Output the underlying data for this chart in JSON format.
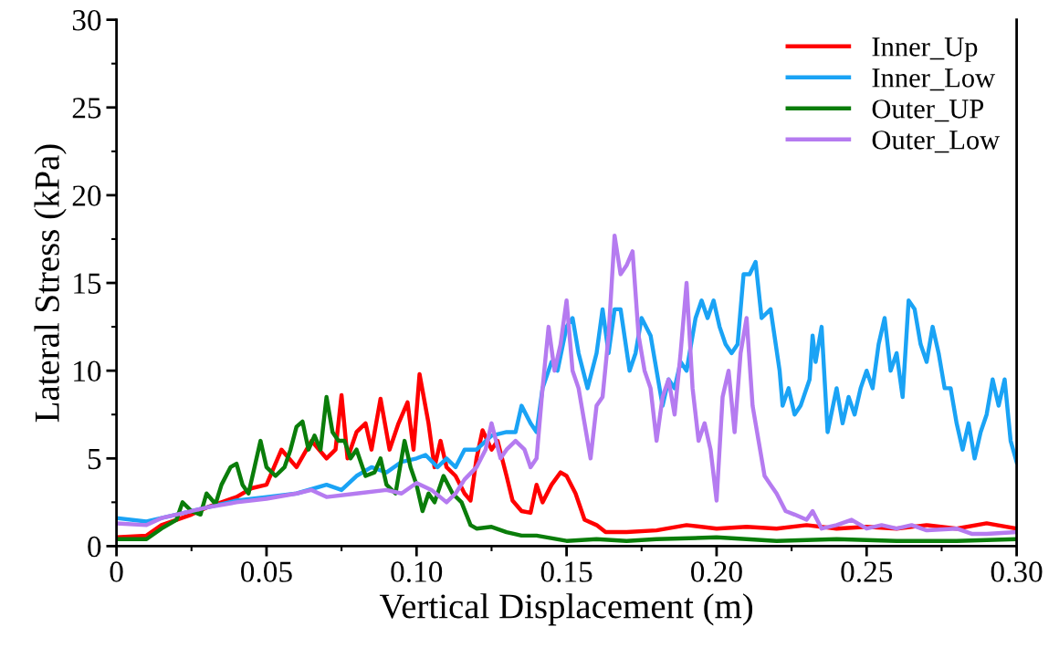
{
  "chart_data": {
    "type": "line",
    "xlabel": "Vertical Displacement (m)",
    "ylabel": "Lateral Stress (kPa)",
    "xlim": [
      0,
      0.3
    ],
    "ylim": [
      0,
      30
    ],
    "xticks": [
      0,
      {
        "value": 0.025,
        "label": null
      },
      {
        "value": 0.05,
        "label": "0.05"
      },
      {
        "value": 0.075,
        "label": null
      },
      {
        "value": 0.1,
        "label": "0.10"
      },
      {
        "value": 0.125,
        "label": null
      },
      {
        "value": 0.15,
        "label": "0.15"
      },
      {
        "value": 0.175,
        "label": null
      },
      {
        "value": 0.2,
        "label": "0.20"
      },
      {
        "value": 0.225,
        "label": null
      },
      {
        "value": 0.25,
        "label": "0.25"
      },
      {
        "value": 0.275,
        "label": null
      },
      {
        "value": 0.3,
        "label": "0.30"
      }
    ],
    "yticks": [
      0,
      {
        "value": 2.5,
        "label": null
      },
      5,
      {
        "value": 7.5,
        "label": null
      },
      10,
      {
        "value": 12.5,
        "label": null
      },
      15,
      {
        "value": 17.5,
        "label": null
      },
      20,
      {
        "value": 22.5,
        "label": null
      },
      25,
      {
        "value": 27.5,
        "label": null
      },
      30
    ],
    "grid": false,
    "legend": "top right",
    "marker": "none",
    "line_style": "solid",
    "series": [
      {
        "name": "Inner_Up",
        "color": "#ff0000",
        "x": [
          0,
          0.01,
          0.015,
          0.02,
          0.025,
          0.03,
          0.035,
          0.04,
          0.045,
          0.05,
          0.055,
          0.06,
          0.065,
          0.07,
          0.073,
          0.075,
          0.077,
          0.08,
          0.083,
          0.085,
          0.088,
          0.091,
          0.094,
          0.097,
          0.099,
          0.101,
          0.104,
          0.106,
          0.108,
          0.11,
          0.113,
          0.116,
          0.118,
          0.12,
          0.122,
          0.125,
          0.127,
          0.13,
          0.132,
          0.135,
          0.138,
          0.14,
          0.142,
          0.145,
          0.148,
          0.15,
          0.153,
          0.156,
          0.16,
          0.163,
          0.17,
          0.18,
          0.19,
          0.2,
          0.21,
          0.22,
          0.23,
          0.24,
          0.25,
          0.26,
          0.27,
          0.28,
          0.29,
          0.3
        ],
        "values": [
          0.5,
          0.6,
          1.2,
          1.5,
          1.8,
          2.2,
          2.5,
          2.8,
          3.3,
          3.5,
          5.5,
          4.5,
          6.0,
          5.0,
          5.5,
          8.6,
          5.0,
          6.5,
          7.0,
          5.5,
          8.4,
          5.5,
          7.0,
          8.2,
          5.5,
          9.8,
          7.0,
          4.5,
          6.0,
          4.5,
          4.0,
          3.0,
          2.6,
          5.0,
          6.6,
          5.5,
          6.0,
          4.0,
          2.6,
          2.0,
          1.9,
          3.5,
          2.5,
          3.5,
          4.2,
          4.0,
          3.0,
          1.5,
          1.2,
          0.8,
          0.8,
          0.9,
          1.2,
          1.0,
          1.1,
          1.0,
          1.2,
          1.0,
          1.1,
          1.0,
          1.2,
          1.0,
          1.3,
          1.0
        ]
      },
      {
        "name": "Inner_Low",
        "color": "#1aa3f5",
        "x": [
          0,
          0.01,
          0.015,
          0.02,
          0.03,
          0.04,
          0.05,
          0.06,
          0.07,
          0.075,
          0.08,
          0.085,
          0.09,
          0.095,
          0.1,
          0.103,
          0.107,
          0.11,
          0.113,
          0.116,
          0.12,
          0.125,
          0.13,
          0.133,
          0.135,
          0.138,
          0.14,
          0.142,
          0.145,
          0.147,
          0.15,
          0.152,
          0.154,
          0.157,
          0.16,
          0.162,
          0.164,
          0.166,
          0.168,
          0.171,
          0.173,
          0.175,
          0.178,
          0.18,
          0.182,
          0.184,
          0.186,
          0.188,
          0.19,
          0.193,
          0.195,
          0.197,
          0.199,
          0.201,
          0.203,
          0.205,
          0.207,
          0.209,
          0.211,
          0.213,
          0.215,
          0.218,
          0.221,
          0.222,
          0.224,
          0.226,
          0.228,
          0.231,
          0.232,
          0.233,
          0.235,
          0.237,
          0.24,
          0.242,
          0.244,
          0.246,
          0.248,
          0.25,
          0.252,
          0.254,
          0.256,
          0.258,
          0.26,
          0.262,
          0.264,
          0.266,
          0.268,
          0.27,
          0.272,
          0.274,
          0.276,
          0.278,
          0.28,
          0.282,
          0.284,
          0.286,
          0.288,
          0.29,
          0.292,
          0.294,
          0.296,
          0.298,
          0.3
        ],
        "values": [
          1.6,
          1.4,
          1.6,
          1.8,
          2.2,
          2.6,
          2.8,
          3.0,
          3.5,
          3.2,
          4.0,
          4.5,
          4.2,
          4.8,
          5.0,
          5.2,
          4.5,
          5.0,
          4.5,
          5.5,
          5.5,
          6.3,
          6.5,
          6.5,
          8.0,
          7.0,
          6.5,
          9.0,
          10.5,
          10.0,
          12.5,
          13.0,
          11.0,
          9.0,
          11.0,
          13.5,
          11.0,
          13.5,
          13.5,
          10.0,
          11.0,
          13.0,
          12.0,
          10.0,
          8.0,
          9.5,
          9.0,
          10.5,
          10.0,
          13.0,
          14.0,
          13.0,
          14.0,
          12.5,
          11.5,
          11.0,
          11.5,
          15.5,
          15.5,
          16.2,
          13.0,
          13.5,
          10.0,
          8.0,
          9.0,
          7.5,
          8.0,
          9.5,
          12.0,
          10.5,
          12.5,
          6.5,
          9.0,
          7.0,
          8.5,
          7.5,
          9.0,
          10.0,
          9.0,
          11.5,
          13.0,
          10.0,
          11.0,
          8.5,
          14.0,
          13.5,
          11.5,
          10.5,
          12.5,
          11.0,
          9.0,
          9.0,
          7.0,
          5.5,
          7.0,
          5.0,
          6.5,
          7.5,
          9.5,
          8.0,
          9.5,
          6.0,
          4.8
        ]
      },
      {
        "name": "Outer_UP",
        "color": "#0a7d0a",
        "x": [
          0,
          0.01,
          0.015,
          0.02,
          0.022,
          0.025,
          0.028,
          0.03,
          0.033,
          0.035,
          0.038,
          0.04,
          0.042,
          0.044,
          0.046,
          0.048,
          0.05,
          0.053,
          0.056,
          0.058,
          0.06,
          0.062,
          0.064,
          0.066,
          0.068,
          0.07,
          0.072,
          0.074,
          0.076,
          0.078,
          0.08,
          0.083,
          0.086,
          0.088,
          0.09,
          0.093,
          0.096,
          0.098,
          0.1,
          0.102,
          0.104,
          0.106,
          0.109,
          0.112,
          0.115,
          0.118,
          0.12,
          0.125,
          0.13,
          0.135,
          0.14,
          0.15,
          0.16,
          0.17,
          0.18,
          0.2,
          0.22,
          0.24,
          0.26,
          0.28,
          0.3
        ],
        "values": [
          0.4,
          0.4,
          1.0,
          1.5,
          2.5,
          2.0,
          1.8,
          3.0,
          2.4,
          3.5,
          4.5,
          4.7,
          3.5,
          3.0,
          4.5,
          6.0,
          4.5,
          4.0,
          4.5,
          5.5,
          6.8,
          7.1,
          5.5,
          6.3,
          5.5,
          8.5,
          6.5,
          6.0,
          6.0,
          5.0,
          5.5,
          4.0,
          4.2,
          5.0,
          3.5,
          3.0,
          6.0,
          4.5,
          3.5,
          2.0,
          3.0,
          2.5,
          4.0,
          3.0,
          2.5,
          1.2,
          1.0,
          1.1,
          0.8,
          0.6,
          0.6,
          0.3,
          0.4,
          0.3,
          0.4,
          0.5,
          0.3,
          0.4,
          0.3,
          0.3,
          0.4
        ]
      },
      {
        "name": "Outer_Low",
        "color": "#b57bf0",
        "x": [
          0,
          0.01,
          0.015,
          0.02,
          0.03,
          0.04,
          0.05,
          0.06,
          0.065,
          0.07,
          0.08,
          0.09,
          0.095,
          0.1,
          0.105,
          0.11,
          0.113,
          0.116,
          0.12,
          0.123,
          0.125,
          0.128,
          0.13,
          0.133,
          0.136,
          0.138,
          0.14,
          0.142,
          0.144,
          0.146,
          0.148,
          0.15,
          0.152,
          0.154,
          0.156,
          0.158,
          0.16,
          0.162,
          0.164,
          0.166,
          0.168,
          0.17,
          0.172,
          0.174,
          0.176,
          0.178,
          0.18,
          0.182,
          0.184,
          0.186,
          0.188,
          0.19,
          0.192,
          0.194,
          0.196,
          0.198,
          0.2,
          0.202,
          0.204,
          0.206,
          0.208,
          0.21,
          0.212,
          0.214,
          0.216,
          0.218,
          0.22,
          0.223,
          0.226,
          0.23,
          0.232,
          0.235,
          0.24,
          0.245,
          0.25,
          0.255,
          0.26,
          0.265,
          0.27,
          0.28,
          0.285,
          0.29,
          0.3
        ],
        "values": [
          1.3,
          1.2,
          1.6,
          1.8,
          2.2,
          2.5,
          2.7,
          3.0,
          3.2,
          2.8,
          3.0,
          3.2,
          3.0,
          3.6,
          3.2,
          2.5,
          3.0,
          3.8,
          4.5,
          5.5,
          7.0,
          5.0,
          5.5,
          6.0,
          5.5,
          4.5,
          5.0,
          9.0,
          12.5,
          10.0,
          11.5,
          14.0,
          10.0,
          9.0,
          7.0,
          5.0,
          8.0,
          8.5,
          12.0,
          17.7,
          15.5,
          16.0,
          16.8,
          12.0,
          10.0,
          9.0,
          6.0,
          8.5,
          9.5,
          7.5,
          11.0,
          15.0,
          9.0,
          6.0,
          7.0,
          5.5,
          2.6,
          8.5,
          10.0,
          6.5,
          11.0,
          13.0,
          8.0,
          6.0,
          4.0,
          3.5,
          3.0,
          2.0,
          1.8,
          1.5,
          2.0,
          1.0,
          1.2,
          1.5,
          1.0,
          1.2,
          1.0,
          1.2,
          0.9,
          1.0,
          0.7,
          0.7,
          0.8
        ]
      }
    ]
  }
}
